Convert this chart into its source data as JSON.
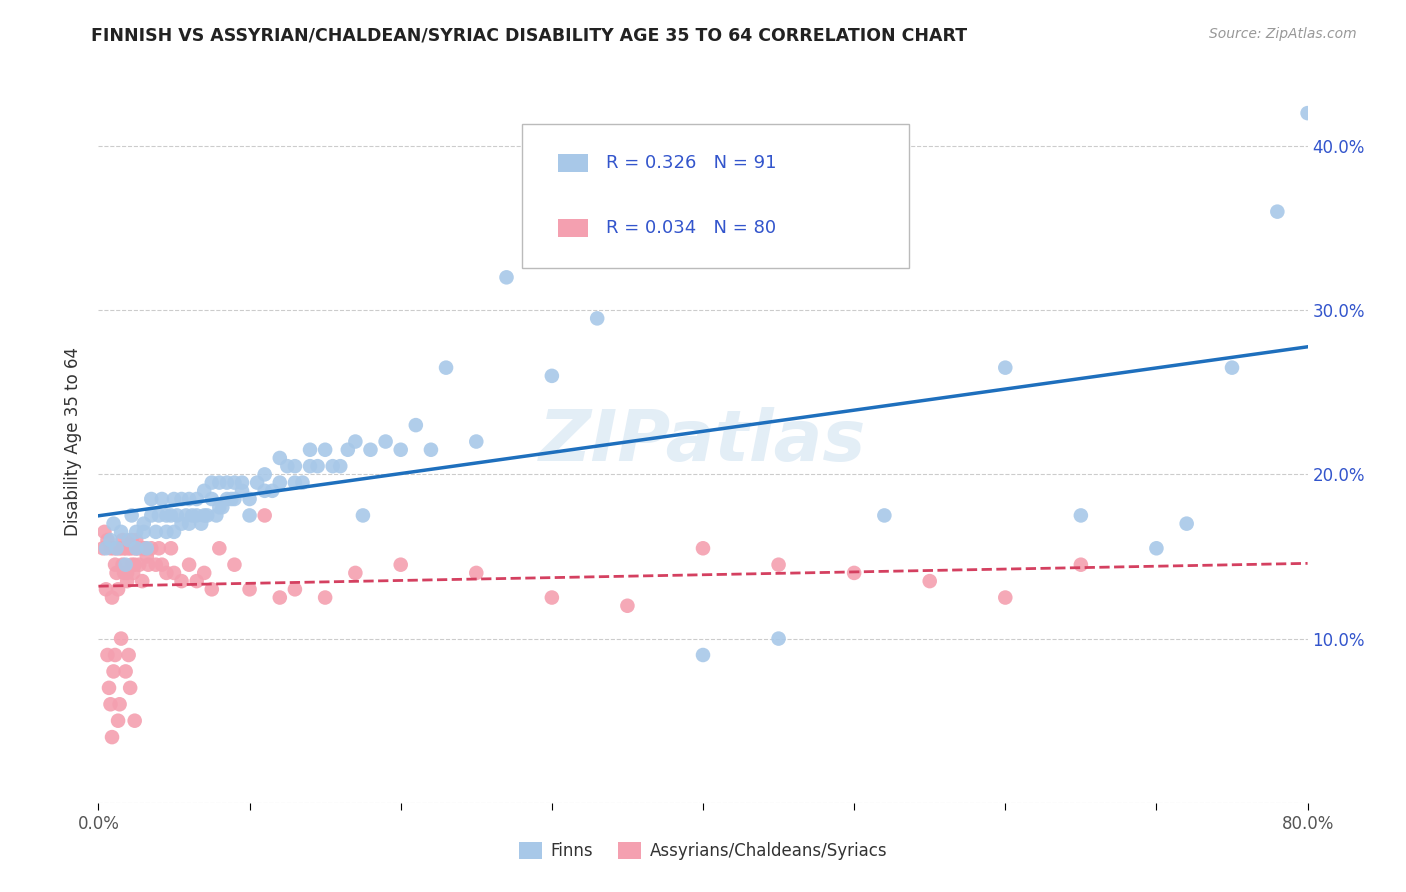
{
  "title": "FINNISH VS ASSYRIAN/CHALDEAN/SYRIAC DISABILITY AGE 35 TO 64 CORRELATION CHART",
  "source": "Source: ZipAtlas.com",
  "ylabel": "Disability Age 35 to 64",
  "xlim": [
    0.0,
    0.8
  ],
  "ylim": [
    0.0,
    0.44
  ],
  "x_ticks": [
    0.0,
    0.1,
    0.2,
    0.3,
    0.4,
    0.5,
    0.6,
    0.7,
    0.8
  ],
  "y_ticks": [
    0.0,
    0.1,
    0.2,
    0.3,
    0.4
  ],
  "finn_R": 0.326,
  "finn_N": 91,
  "assyrian_R": 0.034,
  "assyrian_N": 80,
  "finn_color": "#a8c8e8",
  "finn_line_color": "#1e6fbd",
  "assyrian_color": "#f4a0b0",
  "assyrian_line_color": "#d44060",
  "legend_text_color": "#3355cc",
  "background_color": "#ffffff",
  "grid_color": "#cccccc",
  "watermark_text": "ZIPatlas",
  "finn_x": [
    0.005,
    0.008,
    0.01,
    0.012,
    0.015,
    0.018,
    0.02,
    0.022,
    0.025,
    0.025,
    0.03,
    0.03,
    0.032,
    0.035,
    0.035,
    0.038,
    0.04,
    0.042,
    0.045,
    0.045,
    0.048,
    0.05,
    0.05,
    0.052,
    0.055,
    0.055,
    0.058,
    0.06,
    0.06,
    0.062,
    0.065,
    0.065,
    0.068,
    0.07,
    0.07,
    0.072,
    0.075,
    0.075,
    0.078,
    0.08,
    0.08,
    0.082,
    0.085,
    0.085,
    0.088,
    0.09,
    0.09,
    0.095,
    0.095,
    0.1,
    0.1,
    0.105,
    0.11,
    0.11,
    0.115,
    0.12,
    0.12,
    0.125,
    0.13,
    0.13,
    0.135,
    0.14,
    0.14,
    0.145,
    0.15,
    0.155,
    0.16,
    0.165,
    0.17,
    0.175,
    0.18,
    0.19,
    0.2,
    0.21,
    0.22,
    0.23,
    0.25,
    0.27,
    0.3,
    0.33,
    0.36,
    0.4,
    0.45,
    0.52,
    0.6,
    0.65,
    0.7,
    0.72,
    0.75,
    0.78,
    0.8
  ],
  "finn_y": [
    0.155,
    0.16,
    0.17,
    0.155,
    0.165,
    0.145,
    0.16,
    0.175,
    0.165,
    0.155,
    0.165,
    0.17,
    0.155,
    0.175,
    0.185,
    0.165,
    0.175,
    0.185,
    0.165,
    0.175,
    0.175,
    0.165,
    0.185,
    0.175,
    0.17,
    0.185,
    0.175,
    0.17,
    0.185,
    0.175,
    0.175,
    0.185,
    0.17,
    0.175,
    0.19,
    0.175,
    0.185,
    0.195,
    0.175,
    0.18,
    0.195,
    0.18,
    0.185,
    0.195,
    0.185,
    0.185,
    0.195,
    0.19,
    0.195,
    0.175,
    0.185,
    0.195,
    0.19,
    0.2,
    0.19,
    0.195,
    0.21,
    0.205,
    0.195,
    0.205,
    0.195,
    0.205,
    0.215,
    0.205,
    0.215,
    0.205,
    0.205,
    0.215,
    0.22,
    0.175,
    0.215,
    0.22,
    0.215,
    0.23,
    0.215,
    0.265,
    0.22,
    0.32,
    0.26,
    0.295,
    0.35,
    0.09,
    0.1,
    0.175,
    0.265,
    0.175,
    0.155,
    0.17,
    0.265,
    0.36,
    0.42
  ],
  "assyrian_x": [
    0.003,
    0.004,
    0.005,
    0.006,
    0.006,
    0.007,
    0.008,
    0.008,
    0.009,
    0.009,
    0.01,
    0.01,
    0.011,
    0.011,
    0.012,
    0.012,
    0.013,
    0.013,
    0.014,
    0.014,
    0.015,
    0.015,
    0.016,
    0.016,
    0.017,
    0.017,
    0.018,
    0.018,
    0.019,
    0.019,
    0.02,
    0.02,
    0.021,
    0.021,
    0.022,
    0.022,
    0.023,
    0.023,
    0.024,
    0.024,
    0.025,
    0.025,
    0.026,
    0.027,
    0.028,
    0.029,
    0.03,
    0.031,
    0.032,
    0.033,
    0.035,
    0.038,
    0.04,
    0.042,
    0.045,
    0.048,
    0.05,
    0.055,
    0.06,
    0.065,
    0.07,
    0.075,
    0.08,
    0.09,
    0.1,
    0.11,
    0.12,
    0.13,
    0.15,
    0.17,
    0.2,
    0.25,
    0.3,
    0.35,
    0.4,
    0.45,
    0.5,
    0.55,
    0.6,
    0.65
  ],
  "assyrian_y": [
    0.155,
    0.165,
    0.13,
    0.16,
    0.09,
    0.07,
    0.06,
    0.155,
    0.04,
    0.125,
    0.155,
    0.08,
    0.09,
    0.145,
    0.14,
    0.155,
    0.05,
    0.13,
    0.06,
    0.155,
    0.155,
    0.1,
    0.16,
    0.145,
    0.155,
    0.14,
    0.08,
    0.155,
    0.135,
    0.14,
    0.155,
    0.09,
    0.155,
    0.07,
    0.16,
    0.145,
    0.14,
    0.155,
    0.145,
    0.05,
    0.155,
    0.16,
    0.155,
    0.145,
    0.155,
    0.135,
    0.155,
    0.155,
    0.15,
    0.145,
    0.155,
    0.145,
    0.155,
    0.145,
    0.14,
    0.155,
    0.14,
    0.135,
    0.145,
    0.135,
    0.14,
    0.13,
    0.155,
    0.145,
    0.13,
    0.175,
    0.125,
    0.13,
    0.125,
    0.14,
    0.145,
    0.14,
    0.125,
    0.12,
    0.155,
    0.145,
    0.14,
    0.135,
    0.125,
    0.145
  ]
}
